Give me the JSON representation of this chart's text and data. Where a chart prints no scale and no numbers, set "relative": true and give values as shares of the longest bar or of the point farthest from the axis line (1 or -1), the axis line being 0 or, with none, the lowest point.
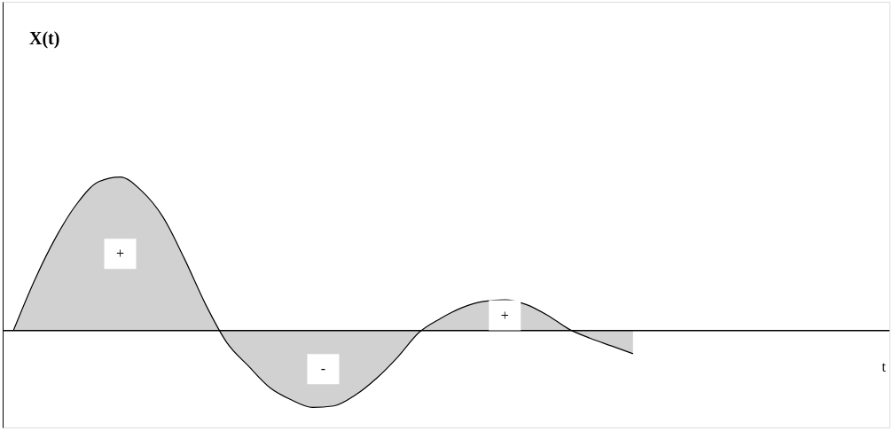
{
  "chart_data": {
    "type": "area",
    "relative": true,
    "xlabel": "t",
    "categories": [
      null,
      null,
      null,
      null,
      null,
      null,
      null,
      null,
      null,
      null,
      null,
      null,
      null,
      null,
      null,
      null,
      null,
      null,
      null,
      null,
      null,
      null,
      null,
      null,
      null,
      null,
      null,
      null,
      null,
      null,
      null,
      null,
      null,
      null,
      null,
      null,
      null,
      null,
      null,
      null,
      null,
      null
    ],
    "series": [
      {
        "color": "#000000",
        "values": [
          0,
          0.33,
          0.61,
          0.83,
          0.97,
          1,
          0.91,
          0.74,
          0.47,
          0.17,
          -0.08,
          -0.23,
          -0.37,
          -0.45,
          -0.5,
          -0.49,
          -0.42,
          -0.31,
          -0.17,
          -0.01,
          0.08,
          0.15,
          0.19,
          0.2,
          0.17,
          0.1,
          0.01,
          -0.05,
          -0.1,
          -0.15,
          null,
          null,
          null,
          null,
          null,
          null,
          null,
          null,
          null,
          null,
          null,
          null
        ]
      }
    ],
    "annotations": [
      {
        "text": "X(t)"
      },
      "+",
      "-",
      "+"
    ],
    "grid": false,
    "marker": "none",
    "line_style": "solid"
  }
}
